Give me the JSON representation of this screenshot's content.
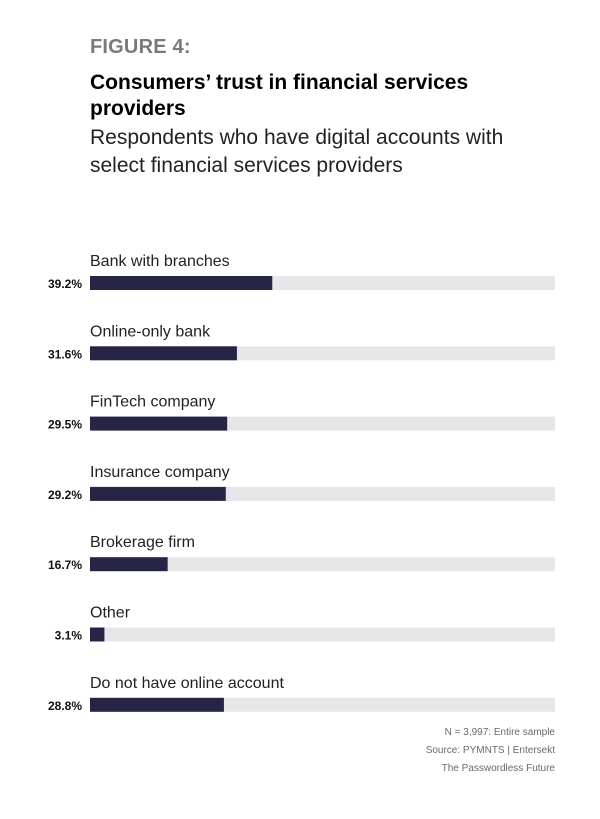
{
  "figure_label": "FIGURE 4:",
  "title": "Consumers’ trust in financial services providers",
  "subtitle": "Respondents who have digital accounts with select financial services providers",
  "notes": {
    "sample": "N = 3,997: Entire sample",
    "source": "Source: PYMNTS  |  Entersekt",
    "report": "The Passwordless Future"
  },
  "colors": {
    "bar_fill": "#262545",
    "bar_track": "#e6e6e8"
  },
  "chart_data": {
    "type": "bar",
    "orientation": "horizontal",
    "title": "Consumers’ trust in financial services providers",
    "subtitle": "Respondents who have digital accounts with select financial services providers",
    "categories": [
      "Bank with branches",
      "Online-only bank",
      "FinTech company",
      "Insurance company",
      "Brokerage firm",
      "Other",
      "Do not have online account"
    ],
    "values": [
      39.2,
      31.6,
      29.5,
      29.2,
      16.7,
      3.1,
      28.8
    ],
    "value_labels": [
      "39.2%",
      "31.6%",
      "29.5%",
      "29.2%",
      "16.7%",
      "3.1%",
      "28.8%"
    ],
    "unit": "%",
    "xlim": [
      0,
      100
    ],
    "grid": false,
    "legend": "none"
  }
}
